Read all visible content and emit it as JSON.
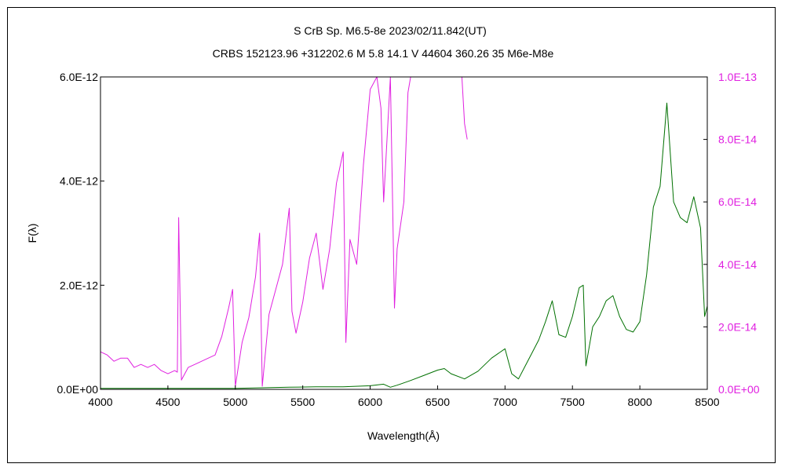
{
  "chart_data": {
    "type": "line",
    "title": "S CrB    Sp. M6.5-8e    2023/02/11.842(UT)",
    "subtitle": "CRBS 152123.96 +312202.6 M 5.8 14.1  V 44604 360.26 35 M6e-M8e",
    "xlabel": "Wavelength(Å)",
    "ylabel": "F(λ)",
    "xlim": [
      4000,
      8500
    ],
    "ylim_left": [
      0,
      6e-12
    ],
    "ylim_right": [
      0,
      1e-13
    ],
    "x_ticks": [
      "4000",
      "4500",
      "5000",
      "5500",
      "6000",
      "6500",
      "7000",
      "7500",
      "8000",
      "8500"
    ],
    "y_ticks_left": [
      "0.0E+00",
      "2.0E-12",
      "4.0E-12",
      "6.0E-12"
    ],
    "y_ticks_right": [
      "0.0E+00",
      "2.0E-14",
      "4.0E-14",
      "6.0E-14",
      "8.0E-14",
      "1.0E-13"
    ],
    "grid": false,
    "colors": {
      "left_series": "#007000",
      "right_series": "#e020e0",
      "axis": "#000000"
    },
    "series": [
      {
        "axis": "left",
        "x": [
          4000,
          4200,
          4400,
          4600,
          4800,
          5000,
          5200,
          5400,
          5600,
          5800,
          6000,
          6100,
          6150,
          6200,
          6300,
          6400,
          6500,
          6550,
          6600,
          6700,
          6800,
          6900,
          7000,
          7050,
          7100,
          7150,
          7200,
          7250,
          7300,
          7350,
          7400,
          7450,
          7500,
          7550,
          7580,
          7600,
          7650,
          7700,
          7750,
          7800,
          7850,
          7900,
          7950,
          8000,
          8050,
          8100,
          8150,
          8200,
          8250,
          8300,
          8350,
          8400,
          8450,
          8480,
          8500
        ],
        "y": [
          2e-14,
          2e-14,
          2e-14,
          2e-14,
          2e-14,
          2e-14,
          3e-14,
          4e-14,
          5e-14,
          5e-14,
          7e-14,
          1e-13,
          4e-14,
          8e-14,
          1.7e-13,
          2.7e-13,
          3.7e-13,
          4e-13,
          3e-13,
          2e-13,
          3.5e-13,
          6e-13,
          7.8e-13,
          3e-13,
          2e-13,
          4.5e-13,
          7e-13,
          9.5e-13,
          1.3e-12,
          1.7e-12,
          1.05e-12,
          1e-12,
          1.4e-12,
          1.95e-12,
          2e-12,
          4.5e-13,
          1.2e-12,
          1.4e-12,
          1.7e-12,
          1.8e-12,
          1.4e-12,
          1.15e-12,
          1.1e-12,
          1.3e-12,
          2.2e-12,
          3.5e-12,
          3.9e-12,
          5.5e-12,
          3.6e-12,
          3.3e-12,
          3.2e-12,
          3.7e-12,
          3.1e-12,
          1.4e-12,
          1.6e-12
        ]
      },
      {
        "axis": "right",
        "x": [
          4000,
          4050,
          4100,
          4150,
          4200,
          4250,
          4300,
          4350,
          4400,
          4450,
          4500,
          4550,
          4570,
          4580,
          4600,
          4650,
          4700,
          4750,
          4800,
          4850,
          4900,
          4950,
          4980,
          5000,
          5050,
          5100,
          5150,
          5180,
          5200,
          5250,
          5300,
          5350,
          5400,
          5420,
          5450,
          5500,
          5550,
          5600,
          5650,
          5700,
          5750,
          5800,
          5820,
          5850,
          5900,
          5950,
          6000,
          6050,
          6080,
          6100,
          6150,
          6180,
          6200,
          6250,
          6280,
          6300,
          6350,
          6400,
          6500,
          6600,
          6680,
          6700,
          6720
        ],
        "y": [
          1.2e-14,
          1.1e-14,
          9e-15,
          1e-14,
          1e-14,
          7e-15,
          8e-15,
          7e-15,
          8e-15,
          6e-15,
          5e-15,
          6e-15,
          5.5e-15,
          5.5e-14,
          3e-15,
          7e-15,
          8e-15,
          9e-15,
          1e-14,
          1.1e-14,
          1.7e-14,
          2.6e-14,
          3.2e-14,
          1e-15,
          1.5e-14,
          2.3e-14,
          3.6e-14,
          5e-14,
          1e-15,
          2.4e-14,
          3.2e-14,
          4e-14,
          5.8e-14,
          2.5e-14,
          1.8e-14,
          2.8e-14,
          4.2e-14,
          5e-14,
          3.2e-14,
          4.5e-14,
          6.6e-14,
          7.6e-14,
          1.5e-14,
          4.8e-14,
          4e-14,
          7.2e-14,
          9.6e-14,
          1e-13,
          9e-14,
          6e-14,
          1e-13,
          2.6e-14,
          4.5e-14,
          6e-14,
          9.5e-14,
          1e-13,
          1e-13,
          1e-13,
          1e-13,
          1e-13,
          1e-13,
          8.5e-14,
          8e-14
        ]
      }
    ]
  }
}
